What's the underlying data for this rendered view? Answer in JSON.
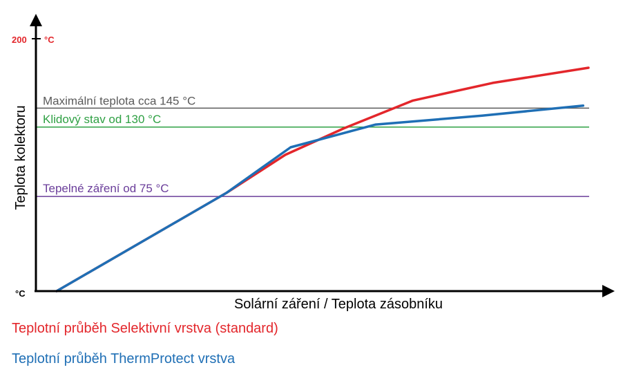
{
  "chart_data": {
    "type": "line",
    "title": "",
    "xlabel": "Solární záření / Teplota zásobníku",
    "ylabel": "Teplota kolektoru",
    "y_unit_bottom": "°C",
    "y_tick_top": {
      "value": "200",
      "unit": "°C"
    },
    "ylim": [
      0,
      200
    ],
    "xlim": [
      0,
      100
    ],
    "reference_lines": [
      {
        "label": "Maximální teplota cca 145 °C",
        "value": 145,
        "color": "#5a5a5a"
      },
      {
        "label": "Klidový stav od 130 °C",
        "value": 130,
        "color": "#2ea043"
      },
      {
        "label": "Tepelné záření od 75 °C",
        "value": 75,
        "color": "#6a3d9a"
      }
    ],
    "series": [
      {
        "name": "Teplotní průběh Selektivní vrstva (standard)",
        "color": "#e3262b",
        "points": [
          [
            0,
            0
          ],
          [
            32,
            78
          ],
          [
            43,
            108
          ],
          [
            54,
            129
          ],
          [
            67,
            151
          ],
          [
            82,
            165
          ],
          [
            100,
            177
          ]
        ]
      },
      {
        "name": "Teplotní průběh ThermProtect vrstva",
        "color": "#1f6fb5",
        "points": [
          [
            0,
            0
          ],
          [
            32,
            78
          ],
          [
            44,
            114
          ],
          [
            60,
            132
          ],
          [
            80,
            139
          ],
          [
            99,
            147
          ]
        ]
      }
    ]
  }
}
